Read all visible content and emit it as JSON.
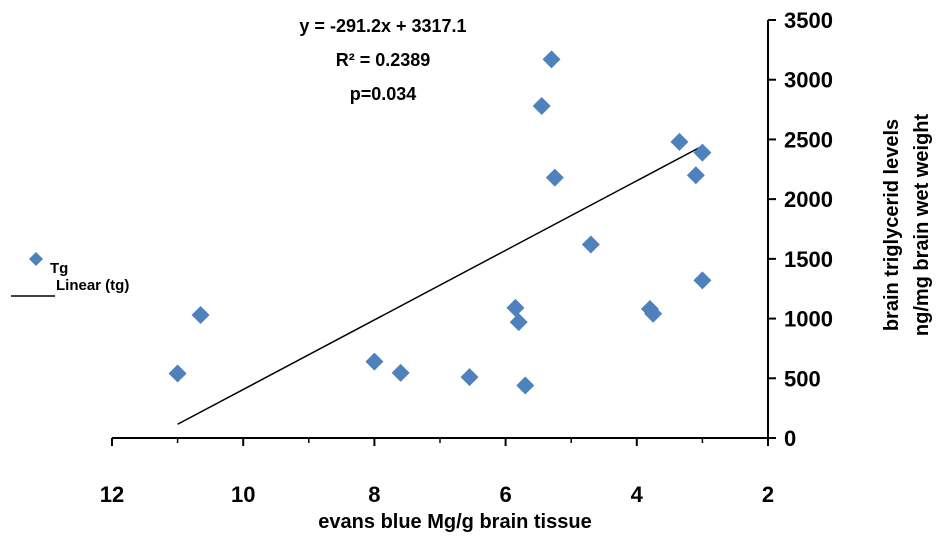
{
  "chart_data": {
    "type": "scatter",
    "xlabel": "evans blue Mg/g brain tissue",
    "ylabel_lines": [
      "brain triglycerid levels",
      "ng/mg brain wet weight"
    ],
    "xlim": [
      12,
      2
    ],
    "ylim": [
      0,
      3500
    ],
    "x_reversed": true,
    "y_axis_position": "right",
    "x_ticks": [
      12,
      10,
      8,
      6,
      4,
      2
    ],
    "y_ticks": [
      0,
      500,
      1000,
      1500,
      2000,
      2500,
      3000,
      3500
    ],
    "grid": false,
    "annotations": [
      "y = -291.2x + 3317.1",
      "R² = 0.2389",
      "p=0.034"
    ],
    "legend": {
      "position": "left",
      "entries": [
        {
          "label": "Tg",
          "marker": "diamond"
        },
        {
          "label": "Linear (tg)",
          "marker": "line"
        }
      ]
    },
    "colors": {
      "points": "#4F81BD",
      "trendline": "#000000"
    },
    "series": [
      {
        "name": "Tg",
        "points": [
          {
            "x": 11.0,
            "y": 540
          },
          {
            "x": 10.65,
            "y": 1030
          },
          {
            "x": 8.0,
            "y": 640
          },
          {
            "x": 7.6,
            "y": 545
          },
          {
            "x": 6.55,
            "y": 510
          },
          {
            "x": 5.85,
            "y": 1090
          },
          {
            "x": 5.8,
            "y": 970
          },
          {
            "x": 5.7,
            "y": 440
          },
          {
            "x": 5.45,
            "y": 2780
          },
          {
            "x": 5.3,
            "y": 3170
          },
          {
            "x": 5.25,
            "y": 2180
          },
          {
            "x": 4.7,
            "y": 1620
          },
          {
            "x": 3.8,
            "y": 1080
          },
          {
            "x": 3.75,
            "y": 1040
          },
          {
            "x": 3.35,
            "y": 2480
          },
          {
            "x": 3.1,
            "y": 2200
          },
          {
            "x": 3.0,
            "y": 2390
          },
          {
            "x": 3.0,
            "y": 1320
          }
        ]
      },
      {
        "name": "Linear (tg)",
        "type": "line",
        "points": [
          {
            "x": 11.0,
            "y": 115
          },
          {
            "x": 3.0,
            "y": 2445
          }
        ]
      }
    ]
  }
}
